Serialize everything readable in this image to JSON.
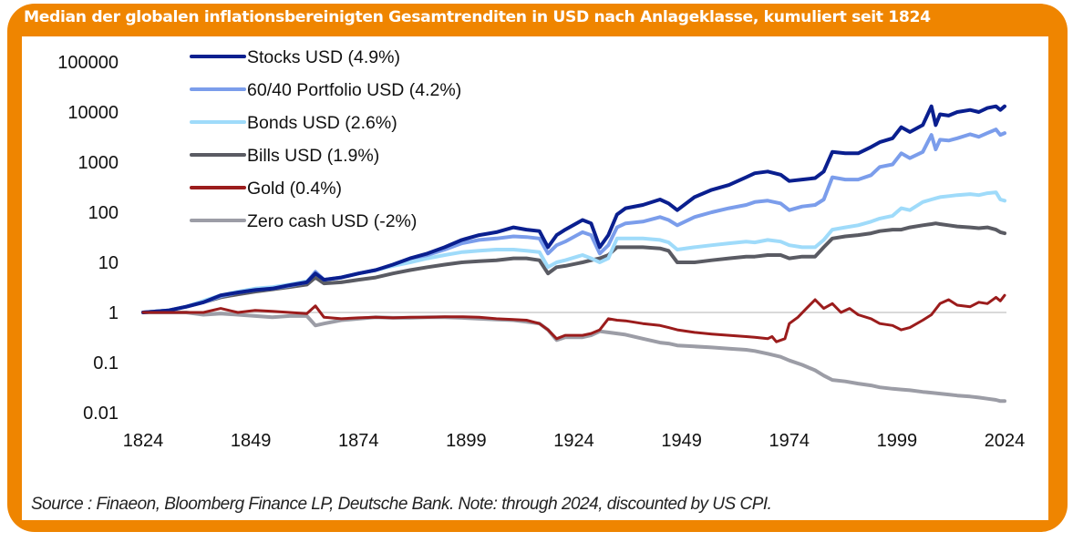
{
  "chart_data": {
    "type": "line",
    "title": "Median der globalen inflationsbereinigten Gesamtrenditen in USD nach Anlageklasse, kumuliert seit 1824",
    "xlabel": "",
    "ylabel": "",
    "yscale": "log",
    "xlim": [
      1824,
      2024
    ],
    "ylim": [
      0.01,
      100000
    ],
    "x_ticks": [
      "1824",
      "1849",
      "1874",
      "1899",
      "1924",
      "1949",
      "1974",
      "1999",
      "2024"
    ],
    "y_ticks": [
      "100000",
      "10000",
      "1000",
      "100",
      "10",
      "1",
      "0.1",
      "0.01"
    ],
    "reference_line": 1,
    "grid": false,
    "legend_position": "top-left",
    "series": [
      {
        "name": "Stocks USD (4.9%)",
        "color": "#0A1F8F",
        "x": [
          1824,
          1830,
          1834,
          1838,
          1842,
          1846,
          1850,
          1854,
          1858,
          1862,
          1864,
          1866,
          1870,
          1874,
          1878,
          1882,
          1886,
          1890,
          1894,
          1898,
          1902,
          1906,
          1910,
          1913,
          1916,
          1918,
          1920,
          1922,
          1926,
          1928,
          1930,
          1932,
          1934,
          1936,
          1940,
          1944,
          1946,
          1948,
          1952,
          1956,
          1960,
          1964,
          1966,
          1969,
          1972,
          1974,
          1977,
          1980,
          1982,
          1984,
          1987,
          1990,
          1993,
          1995,
          1998,
          2000,
          2002,
          2005,
          2007,
          2008,
          2009,
          2011,
          2013,
          2016,
          2018,
          2020,
          2022,
          2023,
          2024
        ],
        "values": [
          1,
          1.1,
          1.3,
          1.6,
          2.2,
          2.5,
          2.8,
          3,
          3.5,
          4,
          6,
          4.5,
          5,
          6,
          7,
          9,
          12,
          15,
          20,
          28,
          35,
          40,
          50,
          45,
          42,
          20,
          35,
          45,
          70,
          60,
          20,
          35,
          90,
          120,
          140,
          180,
          150,
          110,
          200,
          280,
          350,
          500,
          600,
          650,
          560,
          420,
          450,
          480,
          650,
          1600,
          1500,
          1500,
          2000,
          2500,
          3000,
          5000,
          4000,
          5500,
          13000,
          5500,
          9000,
          8500,
          10000,
          11000,
          10000,
          12000,
          13000,
          11000,
          13000
        ]
      },
      {
        "name": "60/40 Portfolio USD (4.2%)",
        "color": "#7B9DEB",
        "x": [
          1824,
          1830,
          1834,
          1838,
          1842,
          1846,
          1850,
          1854,
          1858,
          1862,
          1864,
          1866,
          1870,
          1874,
          1878,
          1882,
          1886,
          1890,
          1894,
          1898,
          1902,
          1906,
          1910,
          1913,
          1916,
          1918,
          1920,
          1922,
          1926,
          1928,
          1930,
          1932,
          1934,
          1936,
          1940,
          1944,
          1946,
          1948,
          1952,
          1956,
          1960,
          1964,
          1966,
          1969,
          1972,
          1974,
          1977,
          1980,
          1982,
          1984,
          1987,
          1990,
          1993,
          1995,
          1998,
          2000,
          2002,
          2005,
          2007,
          2008,
          2009,
          2011,
          2013,
          2016,
          2018,
          2020,
          2022,
          2023,
          2024
        ],
        "values": [
          1,
          1.1,
          1.3,
          1.6,
          2.1,
          2.5,
          2.8,
          3,
          3.4,
          4,
          6.5,
          4.5,
          5,
          6,
          7,
          9,
          12,
          14,
          18,
          24,
          28,
          30,
          33,
          32,
          30,
          15,
          22,
          26,
          40,
          35,
          15,
          22,
          50,
          60,
          65,
          80,
          70,
          55,
          80,
          100,
          120,
          140,
          160,
          170,
          150,
          110,
          130,
          140,
          180,
          500,
          450,
          450,
          550,
          800,
          900,
          1500,
          1200,
          1600,
          3500,
          1800,
          2800,
          2700,
          3000,
          3600,
          3200,
          3800,
          4500,
          3500,
          3800
        ]
      },
      {
        "name": "Bonds USD (2.6%)",
        "color": "#9FDBFA",
        "x": [
          1824,
          1830,
          1834,
          1838,
          1842,
          1846,
          1850,
          1854,
          1858,
          1862,
          1864,
          1866,
          1870,
          1874,
          1878,
          1882,
          1886,
          1890,
          1894,
          1898,
          1902,
          1906,
          1910,
          1913,
          1916,
          1918,
          1920,
          1922,
          1926,
          1928,
          1930,
          1932,
          1934,
          1936,
          1940,
          1944,
          1946,
          1948,
          1952,
          1956,
          1960,
          1964,
          1966,
          1969,
          1972,
          1974,
          1977,
          1980,
          1982,
          1984,
          1987,
          1990,
          1993,
          1995,
          1998,
          2000,
          2002,
          2005,
          2007,
          2008,
          2009,
          2011,
          2013,
          2016,
          2018,
          2020,
          2022,
          2023,
          2024
        ],
        "values": [
          1,
          1.1,
          1.3,
          1.7,
          2.2,
          2.6,
          3,
          3.2,
          3.6,
          4.2,
          6,
          4.5,
          5,
          6,
          7,
          8.5,
          10,
          12,
          14,
          16,
          17,
          18,
          18,
          17,
          16,
          8,
          10,
          11,
          14,
          12,
          10,
          12,
          30,
          30,
          30,
          28,
          25,
          18,
          20,
          22,
          24,
          26,
          25,
          28,
          26,
          22,
          20,
          20,
          28,
          45,
          50,
          55,
          65,
          75,
          85,
          120,
          110,
          160,
          180,
          190,
          200,
          210,
          220,
          230,
          220,
          240,
          250,
          180,
          170
        ]
      },
      {
        "name": "Bills USD (1.9%)",
        "color": "#5A5B63",
        "x": [
          1824,
          1830,
          1834,
          1838,
          1842,
          1846,
          1850,
          1854,
          1858,
          1862,
          1864,
          1866,
          1870,
          1874,
          1878,
          1882,
          1886,
          1890,
          1894,
          1898,
          1902,
          1906,
          1910,
          1913,
          1916,
          1918,
          1920,
          1922,
          1926,
          1928,
          1930,
          1932,
          1934,
          1936,
          1940,
          1944,
          1946,
          1948,
          1952,
          1956,
          1960,
          1964,
          1966,
          1969,
          1972,
          1974,
          1977,
          1980,
          1982,
          1984,
          1987,
          1990,
          1993,
          1995,
          1998,
          2000,
          2002,
          2005,
          2007,
          2008,
          2009,
          2011,
          2013,
          2016,
          2018,
          2020,
          2022,
          2023,
          2024
        ],
        "values": [
          1,
          1.1,
          1.3,
          1.6,
          2,
          2.3,
          2.6,
          2.9,
          3.2,
          3.6,
          5,
          3.8,
          4,
          4.5,
          5,
          6,
          7,
          8,
          9,
          10,
          10.5,
          11,
          12,
          12,
          11,
          6,
          8,
          8.5,
          10,
          11,
          12,
          14,
          20,
          20,
          20,
          19,
          17,
          10,
          10,
          11,
          12,
          13,
          13,
          14,
          14,
          12,
          13,
          13,
          20,
          30,
          33,
          35,
          38,
          42,
          45,
          45,
          50,
          55,
          58,
          60,
          58,
          55,
          52,
          50,
          48,
          50,
          45,
          40,
          38
        ]
      },
      {
        "name": "Gold (0.4%)",
        "color": "#9B1C1C",
        "x": [
          1824,
          1830,
          1834,
          1838,
          1842,
          1846,
          1850,
          1854,
          1858,
          1862,
          1864,
          1866,
          1870,
          1874,
          1878,
          1882,
          1886,
          1890,
          1894,
          1898,
          1902,
          1906,
          1910,
          1913,
          1916,
          1918,
          1920,
          1922,
          1926,
          1928,
          1930,
          1932,
          1934,
          1936,
          1940,
          1944,
          1946,
          1948,
          1952,
          1956,
          1960,
          1964,
          1966,
          1969,
          1970,
          1971,
          1973,
          1974,
          1976,
          1978,
          1980,
          1982,
          1984,
          1986,
          1988,
          1990,
          1993,
          1995,
          1998,
          2000,
          2002,
          2005,
          2007,
          2009,
          2011,
          2013,
          2016,
          2018,
          2020,
          2022,
          2023,
          2024
        ],
        "values": [
          1,
          1,
          1,
          1,
          1.2,
          1,
          1.1,
          1.05,
          1,
          0.95,
          1.35,
          0.8,
          0.75,
          0.78,
          0.8,
          0.78,
          0.8,
          0.8,
          0.82,
          0.82,
          0.8,
          0.75,
          0.72,
          0.7,
          0.6,
          0.45,
          0.3,
          0.35,
          0.35,
          0.38,
          0.45,
          0.75,
          0.7,
          0.68,
          0.6,
          0.55,
          0.5,
          0.45,
          0.4,
          0.37,
          0.35,
          0.33,
          0.32,
          0.3,
          0.33,
          0.26,
          0.3,
          0.6,
          0.8,
          1.2,
          1.8,
          1.2,
          1.5,
          1.0,
          1.2,
          0.9,
          0.75,
          0.6,
          0.55,
          0.45,
          0.5,
          0.7,
          0.9,
          1.5,
          1.8,
          1.4,
          1.3,
          1.6,
          1.5,
          2.0,
          1.7,
          2.2
        ]
      },
      {
        "name": "Zero cash USD (-2%)",
        "color": "#9C9DA6",
        "x": [
          1824,
          1830,
          1834,
          1838,
          1842,
          1846,
          1850,
          1854,
          1858,
          1862,
          1864,
          1866,
          1870,
          1874,
          1878,
          1882,
          1886,
          1890,
          1894,
          1898,
          1902,
          1906,
          1910,
          1913,
          1916,
          1918,
          1920,
          1922,
          1926,
          1928,
          1930,
          1932,
          1934,
          1936,
          1940,
          1944,
          1946,
          1948,
          1952,
          1956,
          1960,
          1964,
          1966,
          1969,
          1972,
          1974,
          1977,
          1980,
          1982,
          1984,
          1987,
          1990,
          1993,
          1995,
          1998,
          2000,
          2002,
          2005,
          2007,
          2009,
          2011,
          2013,
          2016,
          2018,
          2020,
          2022,
          2023,
          2024
        ],
        "values": [
          1,
          1,
          1,
          0.9,
          0.95,
          0.9,
          0.85,
          0.8,
          0.85,
          0.85,
          0.55,
          0.6,
          0.7,
          0.75,
          0.8,
          0.78,
          0.78,
          0.8,
          0.8,
          0.78,
          0.75,
          0.72,
          0.7,
          0.65,
          0.6,
          0.45,
          0.28,
          0.32,
          0.32,
          0.35,
          0.42,
          0.4,
          0.38,
          0.36,
          0.3,
          0.25,
          0.24,
          0.22,
          0.21,
          0.2,
          0.19,
          0.18,
          0.17,
          0.15,
          0.13,
          0.11,
          0.09,
          0.07,
          0.055,
          0.045,
          0.042,
          0.038,
          0.035,
          0.032,
          0.03,
          0.029,
          0.028,
          0.026,
          0.025,
          0.024,
          0.023,
          0.022,
          0.021,
          0.02,
          0.019,
          0.018,
          0.017,
          0.017
        ]
      }
    ]
  },
  "footer": {
    "source": "Source : Finaeon, Bloomberg Finance LP, Deutsche Bank. Note: through 2024, discounted by US CPI."
  }
}
